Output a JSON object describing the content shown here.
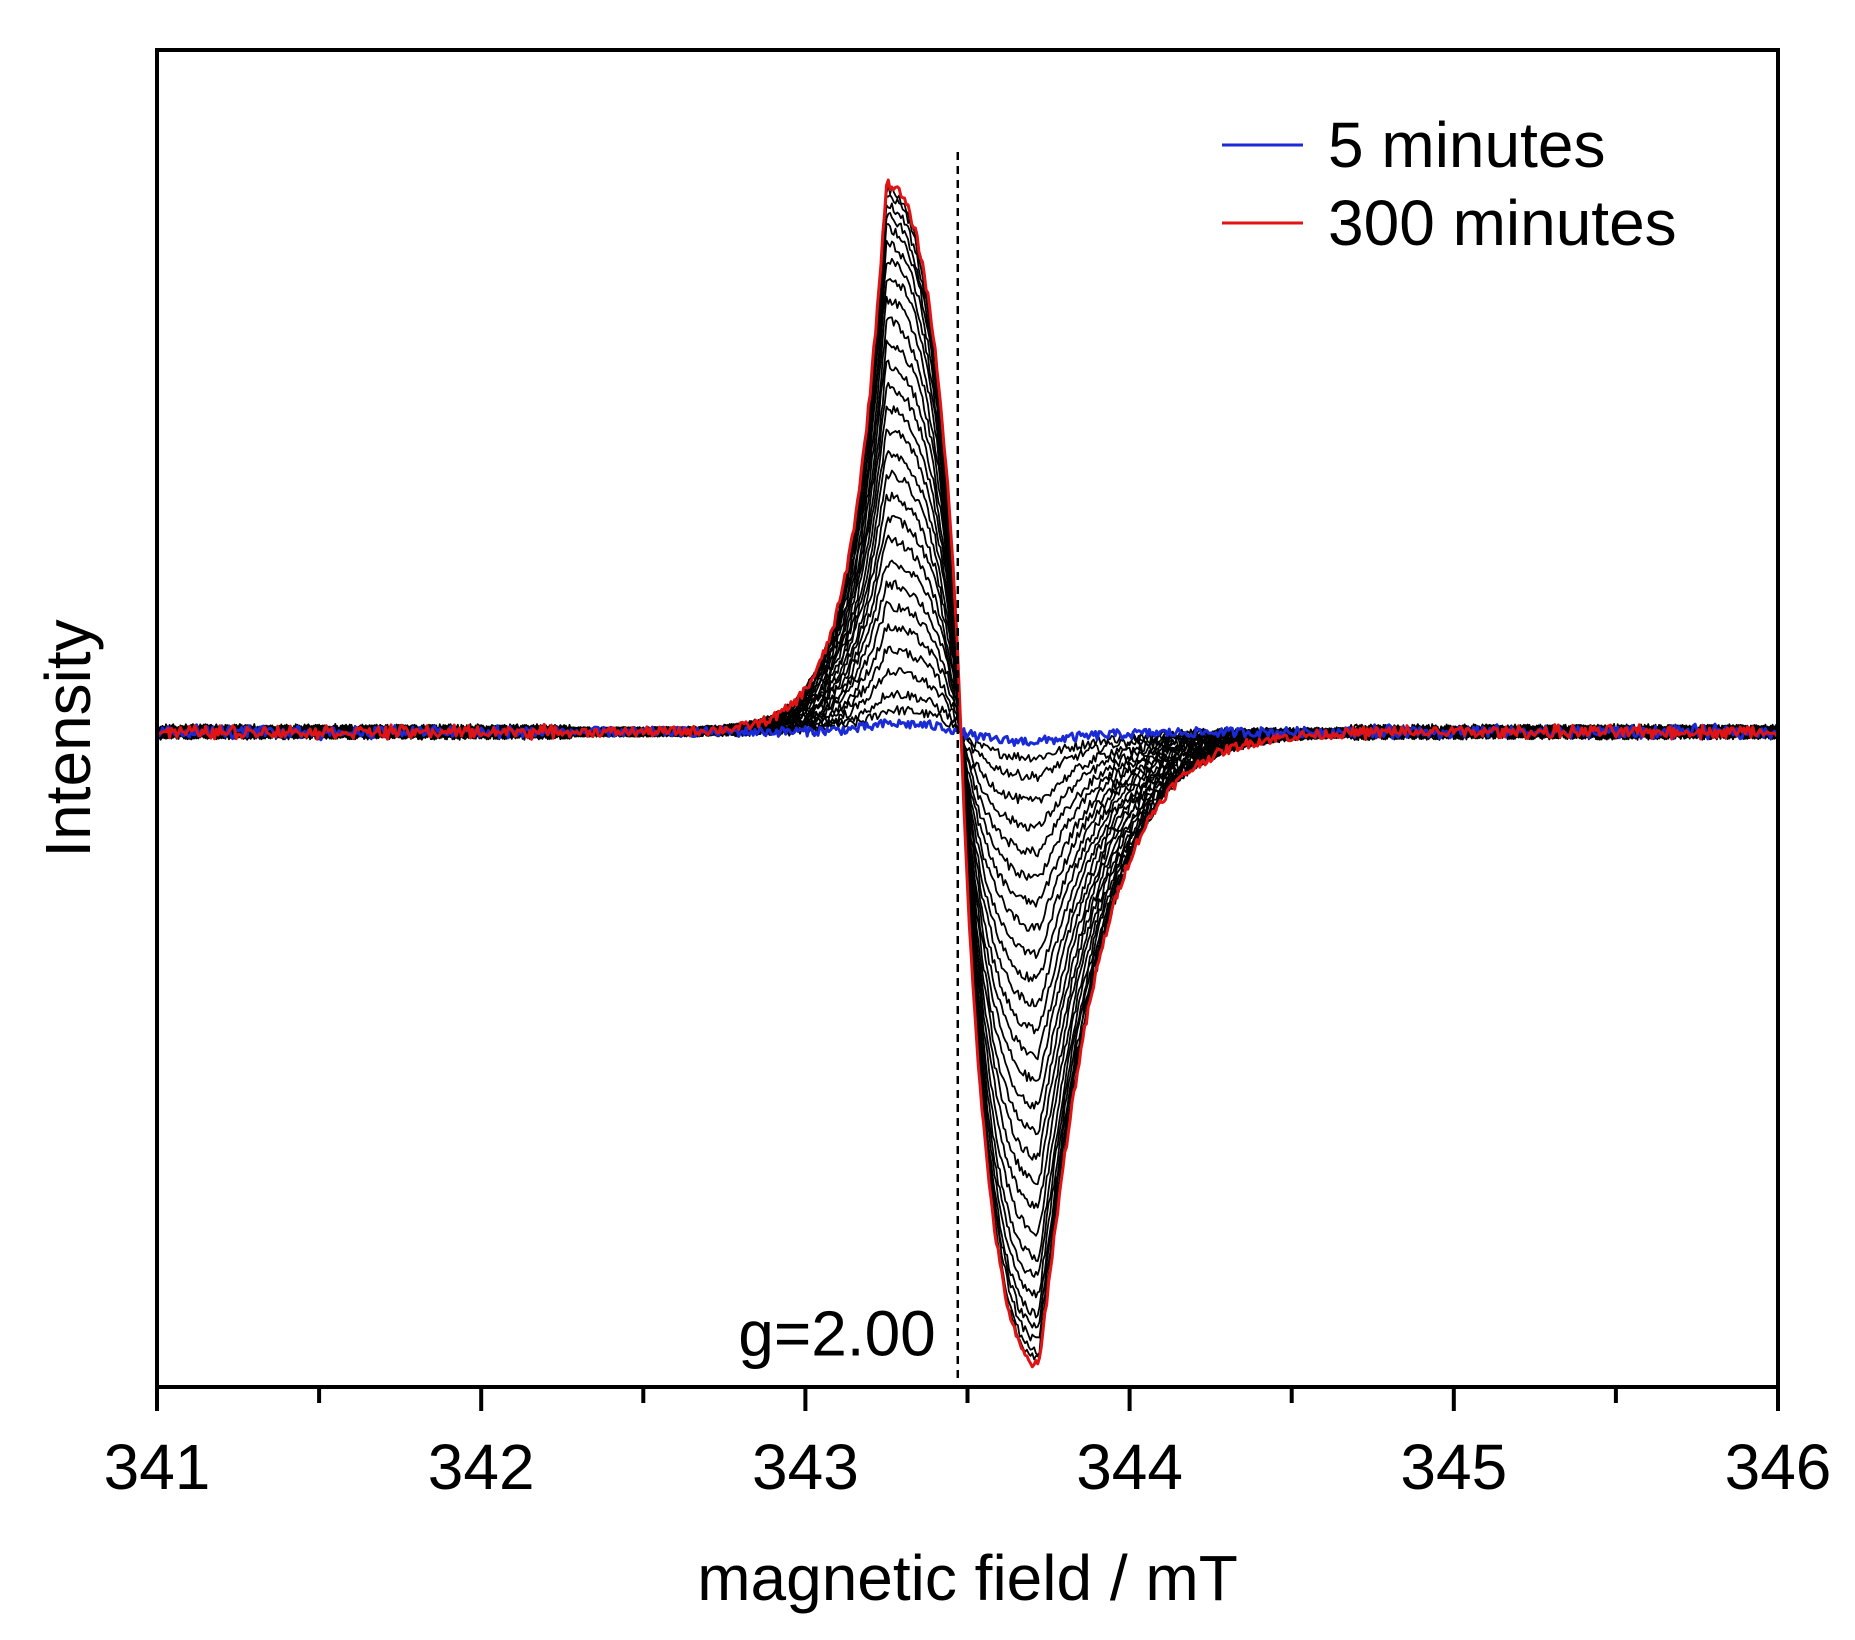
{
  "chart_data": {
    "type": "line",
    "title": "",
    "xlabel": "magnetic field / mT",
    "ylabel": "Intensity",
    "xlim": [
      341,
      346
    ],
    "ylim": [
      -1.22,
      1.27
    ],
    "x_ticks": [
      341,
      342,
      343,
      344,
      345,
      346
    ],
    "x_tick_labels": [
      "341",
      "342",
      "343",
      "344",
      "345",
      "346"
    ],
    "x_minor_tick_step": 0.5,
    "y_ticks_shown": false,
    "grid": false,
    "legend_position": "top-right",
    "annotations": [
      {
        "text": "g=2.00",
        "x": 343.47,
        "type": "vertical-dashed-line",
        "y_from": -1.22,
        "y_to": 1.08,
        "label_anchor_y": -1.12
      }
    ],
    "line_model": {
      "shape": "first-derivative absorption",
      "center_mT": 343.48,
      "positive_peak_mT": 343.25,
      "negative_peak_mT": 343.72,
      "max_positive_amplitude": 1.02,
      "max_negative_amplitude": -1.18
    },
    "series": [
      {
        "name": "5 minutes",
        "color": "#1a2ad6",
        "scale": 0.015,
        "legend": true
      },
      {
        "name": "",
        "color": "#000000",
        "scale": 0.04
      },
      {
        "name": "",
        "color": "#000000",
        "scale": 0.07
      },
      {
        "name": "",
        "color": "#000000",
        "scale": 0.11
      },
      {
        "name": "",
        "color": "#000000",
        "scale": 0.15
      },
      {
        "name": "",
        "color": "#000000",
        "scale": 0.19
      },
      {
        "name": "",
        "color": "#000000",
        "scale": 0.23
      },
      {
        "name": "",
        "color": "#000000",
        "scale": 0.27
      },
      {
        "name": "",
        "color": "#000000",
        "scale": 0.31
      },
      {
        "name": "",
        "color": "#000000",
        "scale": 0.35
      },
      {
        "name": "",
        "color": "#000000",
        "scale": 0.39
      },
      {
        "name": "",
        "color": "#000000",
        "scale": 0.43
      },
      {
        "name": "",
        "color": "#000000",
        "scale": 0.47
      },
      {
        "name": "",
        "color": "#000000",
        "scale": 0.51
      },
      {
        "name": "",
        "color": "#000000",
        "scale": 0.55
      },
      {
        "name": "",
        "color": "#000000",
        "scale": 0.59
      },
      {
        "name": "",
        "color": "#000000",
        "scale": 0.63
      },
      {
        "name": "",
        "color": "#000000",
        "scale": 0.67
      },
      {
        "name": "",
        "color": "#000000",
        "scale": 0.71
      },
      {
        "name": "",
        "color": "#000000",
        "scale": 0.75
      },
      {
        "name": "",
        "color": "#000000",
        "scale": 0.79
      },
      {
        "name": "",
        "color": "#000000",
        "scale": 0.83
      },
      {
        "name": "",
        "color": "#000000",
        "scale": 0.86
      },
      {
        "name": "",
        "color": "#000000",
        "scale": 0.89
      },
      {
        "name": "",
        "color": "#000000",
        "scale": 0.92
      },
      {
        "name": "",
        "color": "#000000",
        "scale": 0.94
      },
      {
        "name": "",
        "color": "#000000",
        "scale": 0.96
      },
      {
        "name": "",
        "color": "#000000",
        "scale": 0.98
      },
      {
        "name": "",
        "color": "#000000",
        "scale": 0.99
      },
      {
        "name": "300 minutes",
        "color": "#e01414",
        "scale": 1.0,
        "legend": true
      }
    ]
  }
}
